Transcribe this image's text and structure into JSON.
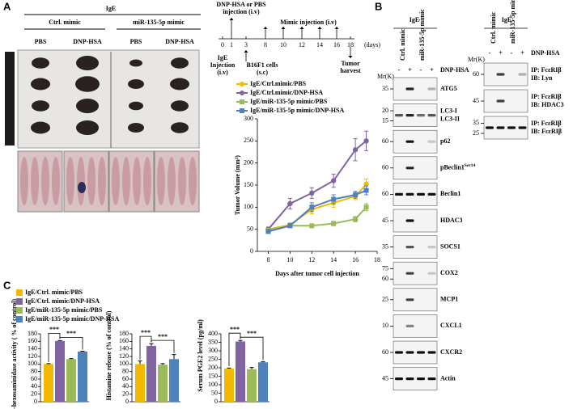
{
  "panel_labels": [
    "A",
    "B",
    "C"
  ],
  "panel_a": {
    "photo": {
      "treatment": "IgE",
      "groups": [
        "Ctrl. mimic",
        "miR-135-5p mimic"
      ],
      "conditions": [
        "PBS",
        "DNP-HSA",
        "PBS",
        "DNP-HSA"
      ]
    },
    "timeline": {
      "top_labels": [
        [
          "DNP-HSA or PBS",
          "injection (i.v)"
        ],
        [
          "Mimic injection (i.v)"
        ]
      ],
      "days": [
        0,
        1,
        3,
        8,
        10,
        12,
        14,
        16,
        18
      ],
      "unit": "(days)",
      "bottom_labels": [
        [
          "IgE",
          "Injection",
          "(i.v)"
        ],
        [
          "B16F1 cells",
          "(s.c)"
        ],
        [
          "Tumor",
          "harvest"
        ]
      ]
    }
  },
  "panel_b": {
    "left": {
      "treatment": "IgE",
      "lanes": [
        "Ctrl. mimic",
        "miR-135-5p mimic"
      ],
      "mr": "Mr(K)",
      "signs": [
        "-",
        "+",
        "-",
        "+"
      ],
      "stimulus": "DNP-HSA",
      "rows": [
        {
          "markers": [
            35
          ],
          "labels": [
            "ATG5"
          ]
        },
        {
          "markers": [
            20,
            15
          ],
          "labels": [
            "LC3-I",
            "LC3-II"
          ]
        },
        {
          "markers": [
            60
          ],
          "labels": [
            "p62"
          ]
        },
        {
          "markers": [
            60
          ],
          "labels": [
            "pBeclin1"
          ],
          "label_sup": "Ser14"
        },
        {
          "markers": [
            60
          ],
          "labels": [
            "Beclin1"
          ]
        },
        {
          "markers": [
            45
          ],
          "labels": [
            "HDAC3"
          ]
        },
        {
          "markers": [
            35
          ],
          "labels": [
            "SOCS1"
          ]
        },
        {
          "markers": [
            75,
            60
          ],
          "labels": [
            "COX2"
          ]
        },
        {
          "markers": [
            25
          ],
          "labels": [
            "MCP1"
          ]
        },
        {
          "markers": [
            10
          ],
          "labels": [
            "CXCL1"
          ]
        },
        {
          "markers": [
            60
          ],
          "labels": [
            "CXCR2"
          ]
        },
        {
          "markers": [
            45
          ],
          "labels": [
            "Actin"
          ]
        }
      ]
    },
    "right": {
      "treatment": "IgE",
      "lanes": [
        "Ctrl. mimic",
        "miR-135-5p mimic"
      ],
      "mr": "Mr(K)",
      "signs": [
        "-",
        "+",
        "-",
        "+"
      ],
      "stimulus": "DNP-HSA",
      "rows": [
        {
          "markers": [
            60
          ],
          "labels": [
            "IP: FcεRIβ",
            "IB: Lyn"
          ]
        },
        {
          "markers": [
            45
          ],
          "labels": [
            "IP: FcεRIβ",
            "IB: HDAC3"
          ]
        },
        {
          "markers": [
            35,
            25
          ],
          "labels": [
            "IP: FcεRIβ",
            "IB: FcεRIβ"
          ]
        }
      ]
    }
  },
  "panel_c": {
    "legend": [
      {
        "name": "IgE/Ctrl. mimic/PBS",
        "color": "#f5b800"
      },
      {
        "name": "IgE/Ctrl. mimic/DNP-HSA",
        "color": "#8064a2"
      },
      {
        "name": "IgE/miR-135-5p mimic/PBS",
        "color": "#9bbb59"
      },
      {
        "name": "IgE/miR-135-5p mimic/DNP-HSA",
        "color": "#4f81bd"
      }
    ]
  },
  "chart_data": [
    {
      "type": "line",
      "ylabel": "Tumor Volume (mm³)",
      "xlabel": "Days after tumor cell injection",
      "x": [
        8,
        10,
        12,
        14,
        16,
        17
      ],
      "xlim": [
        7,
        18
      ],
      "xticks": [
        8,
        10,
        12,
        14,
        16,
        18
      ],
      "ylim": [
        0,
        300
      ],
      "yticks": [
        0,
        50,
        100,
        150,
        200,
        250,
        300
      ],
      "series": [
        {
          "name": "IgE/Ctrl.mimic/PBS",
          "color": "#f5b800",
          "marker": "circle",
          "values": [
            50,
            60,
            95,
            110,
            125,
            152
          ],
          "errors": [
            4,
            5,
            10,
            10,
            8,
            12
          ]
        },
        {
          "name": "IgE/Ctrl.mimic/DNP-HSA",
          "color": "#8064a2",
          "marker": "circle",
          "values": [
            50,
            108,
            132,
            160,
            230,
            250
          ],
          "errors": [
            5,
            12,
            12,
            15,
            25,
            22
          ]
        },
        {
          "name": "IgE/miR-135-5p mimic/PBS",
          "color": "#9bbb59",
          "marker": "square",
          "values": [
            48,
            58,
            58,
            63,
            73,
            100
          ],
          "errors": [
            3,
            3,
            3,
            5,
            6,
            8
          ]
        },
        {
          "name": "IgE/miR-135-5p mimic/DNP-HSA",
          "color": "#4f81bd",
          "marker": "square",
          "values": [
            45,
            58,
            100,
            118,
            128,
            138
          ],
          "errors": [
            4,
            4,
            10,
            10,
            8,
            10
          ]
        }
      ]
    },
    {
      "type": "bar",
      "ylabel": "β-hexosaminidase activity ( % of control)",
      "categories": [
        null,
        null,
        null,
        null
      ],
      "colors": [
        "#f5b800",
        "#8064a2",
        "#9bbb59",
        "#4f81bd"
      ],
      "values": [
        100,
        161,
        113,
        133
      ],
      "errors": [
        1,
        1,
        1,
        1
      ],
      "ylim": [
        0,
        180
      ],
      "yticks": [
        0,
        20,
        40,
        60,
        80,
        100,
        120,
        140,
        160,
        180
      ],
      "significance": [
        "***",
        "***"
      ]
    },
    {
      "type": "bar",
      "ylabel": "Histamine release (% of control)",
      "categories": [
        null,
        null,
        null,
        null
      ],
      "colors": [
        "#f5b800",
        "#8064a2",
        "#9bbb59",
        "#4f81bd"
      ],
      "values": [
        100,
        148,
        98,
        113
      ],
      "errors": [
        8,
        6,
        3,
        12
      ],
      "ylim": [
        0,
        180
      ],
      "yticks": [
        0,
        20,
        40,
        60,
        80,
        100,
        120,
        140,
        160,
        180
      ],
      "significance": [
        "***",
        "***"
      ]
    },
    {
      "type": "bar",
      "ylabel": "Serum PGE2 level (pg/ml)",
      "categories": [
        null,
        null,
        null,
        null
      ],
      "colors": [
        "#f5b800",
        "#8064a2",
        "#9bbb59",
        "#4f81bd"
      ],
      "values": [
        195,
        355,
        192,
        232
      ],
      "errors": [
        3,
        6,
        10,
        3
      ],
      "ylim": [
        0,
        400
      ],
      "yticks": [
        0,
        50,
        100,
        150,
        200,
        250,
        300,
        350,
        400
      ],
      "significance": [
        "***",
        "***"
      ]
    }
  ]
}
